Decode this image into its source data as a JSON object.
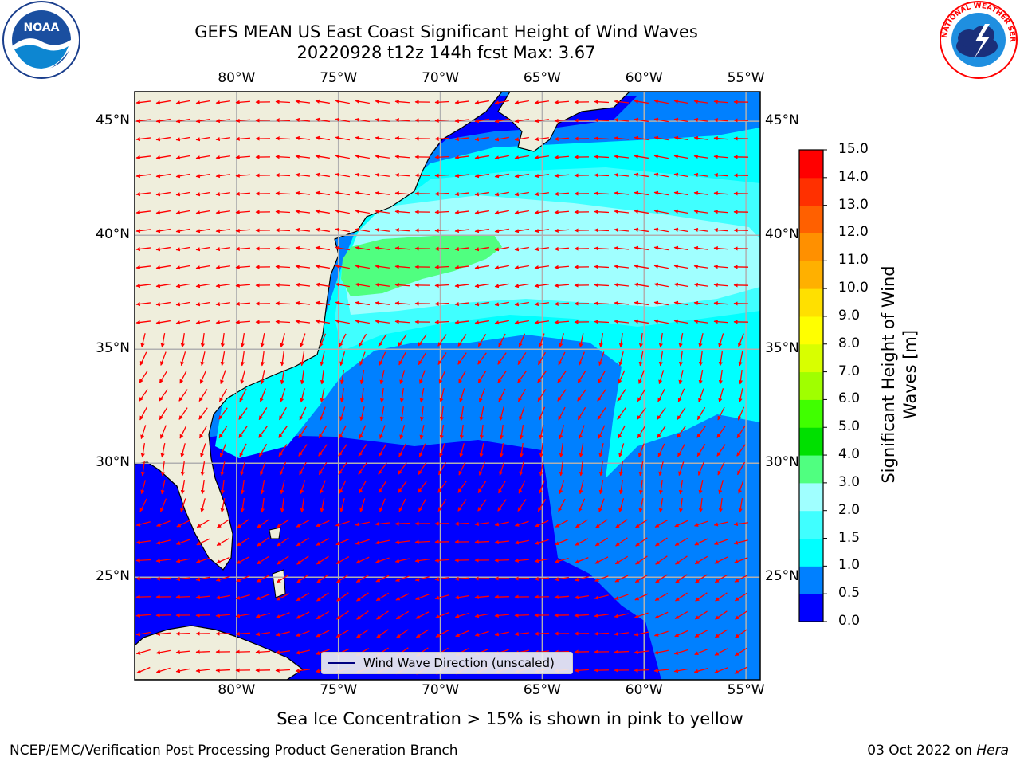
{
  "title": {
    "line1": "GEFS MEAN US East Coast Significant Height of Wind Waves",
    "line2": "20220928 t12z 144h fcst   Max: 3.67"
  },
  "logos": {
    "left_text": "NOAA",
    "right_text": "NATIONAL WEATHER SERVICE"
  },
  "axes": {
    "lon_labels": [
      "80°W",
      "75°W",
      "70°W",
      "65°W",
      "60°W",
      "55°W"
    ],
    "lat_labels": [
      "45°N",
      "40°N",
      "35°N",
      "30°N",
      "25°N"
    ],
    "grid": true,
    "lon_range": [
      -85,
      -54.3
    ],
    "lat_range": [
      20.5,
      46.3
    ]
  },
  "colorbar": {
    "label": "Significant Height of Wind\nWaves [m]",
    "ticks": [
      "15.0",
      "14.0",
      "13.0",
      "12.0",
      "11.0",
      "10.0",
      "9.0",
      "8.0",
      "7.0",
      "6.0",
      "5.0",
      "4.0",
      "3.0",
      "2.0",
      "1.5",
      "1.0",
      "0.5",
      "0.0"
    ],
    "levels": [
      0,
      0.5,
      1.0,
      1.5,
      2.0,
      3.0,
      4.0,
      5.0,
      6.0,
      7.0,
      8.0,
      9.0,
      10.0,
      11.0,
      12.0,
      13.0,
      14.0,
      15.0
    ],
    "colors": [
      "#0000ff",
      "#0080ff",
      "#00ffff",
      "#40ffff",
      "#a0ffff",
      "#50ff80",
      "#00e000",
      "#40ff00",
      "#a0ff00",
      "#d8ff00",
      "#ffff00",
      "#ffe000",
      "#ffb000",
      "#ff9000",
      "#ff6000",
      "#ff3000",
      "#ff0000"
    ]
  },
  "legend": {
    "label": "Wind Wave Direction (unscaled)"
  },
  "subtitle": "Sea Ice Concentration > 15% is shown in pink to yellow",
  "footer": {
    "left": "NCEP/EMC/Verification Post Processing Product Generation Branch",
    "right_date": "03 Oct 2022 on ",
    "right_host": "Hera"
  },
  "colors": {
    "land": "#efeedc",
    "arrow": "#ff0000",
    "grid": "#b0b0b0"
  }
}
